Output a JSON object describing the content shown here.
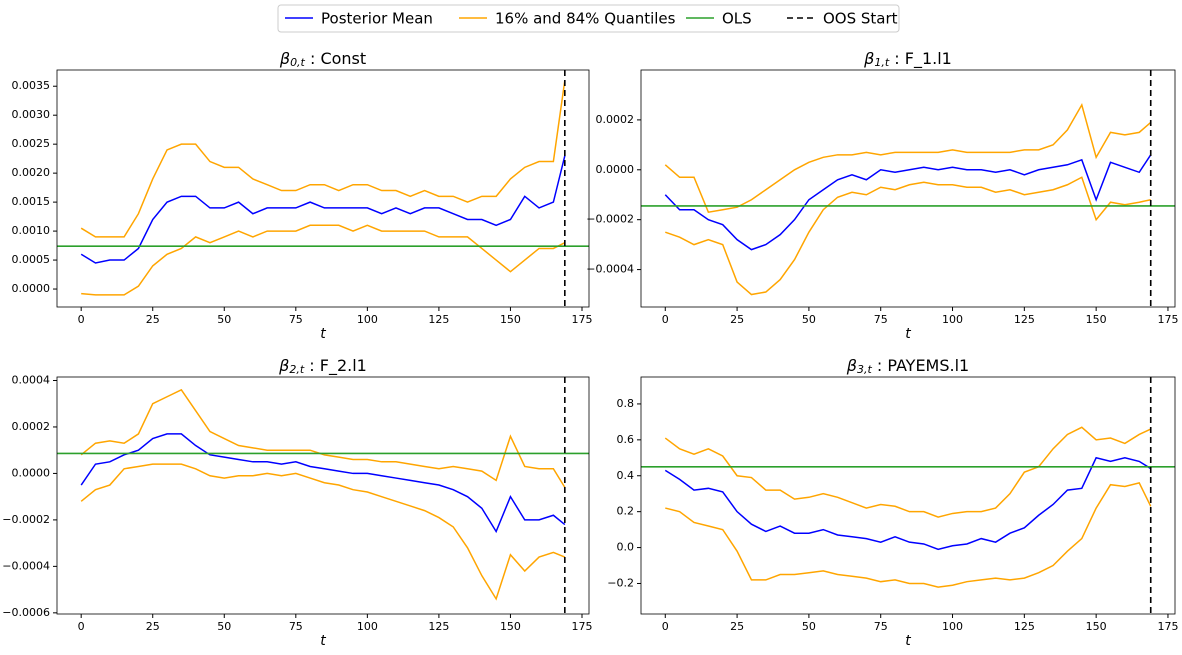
{
  "legend": {
    "location": "upper center",
    "entries": [
      {
        "name": "Posterior Mean",
        "color": "#0000ff",
        "style": "solid"
      },
      {
        "name": "16% and 84% Quantiles",
        "color": "#ffa500",
        "style": "solid"
      },
      {
        "name": "OLS",
        "color": "#2ca02c",
        "style": "solid"
      },
      {
        "name": "OOS Start",
        "color": "#000000",
        "style": "dashed"
      }
    ]
  },
  "chart_data": [
    {
      "type": "line",
      "title_symbol": "β",
      "title_subscript": "0,t",
      "title_text": " : Const",
      "xlabel": "t",
      "x": [
        0,
        5,
        10,
        15,
        20,
        25,
        30,
        35,
        40,
        45,
        50,
        55,
        60,
        65,
        70,
        75,
        80,
        85,
        90,
        95,
        100,
        105,
        110,
        115,
        120,
        125,
        130,
        135,
        140,
        145,
        150,
        155,
        160,
        165,
        169
      ],
      "mean": [
        0.0006,
        0.00045,
        0.0005,
        0.0005,
        0.0007,
        0.0012,
        0.0015,
        0.0016,
        0.0016,
        0.0014,
        0.0014,
        0.0015,
        0.0013,
        0.0014,
        0.0014,
        0.0014,
        0.0015,
        0.0014,
        0.0014,
        0.0014,
        0.0014,
        0.0013,
        0.0014,
        0.0013,
        0.0014,
        0.0014,
        0.0013,
        0.0012,
        0.0012,
        0.0011,
        0.0012,
        0.0016,
        0.0014,
        0.0015,
        0.0023
      ],
      "upper": [
        0.00105,
        0.0009,
        0.0009,
        0.0009,
        0.0013,
        0.0019,
        0.0024,
        0.0025,
        0.0025,
        0.0022,
        0.0021,
        0.0021,
        0.0019,
        0.0018,
        0.0017,
        0.0017,
        0.0018,
        0.0018,
        0.0017,
        0.0018,
        0.0018,
        0.0017,
        0.0017,
        0.0016,
        0.0017,
        0.0016,
        0.0016,
        0.0015,
        0.0016,
        0.0016,
        0.0019,
        0.0021,
        0.0022,
        0.0022,
        0.0036
      ],
      "lower": [
        -8e-05,
        -0.0001,
        -0.0001,
        -0.0001,
        5e-05,
        0.0004,
        0.0006,
        0.0007,
        0.0009,
        0.0008,
        0.0009,
        0.001,
        0.0009,
        0.001,
        0.001,
        0.001,
        0.0011,
        0.0011,
        0.0011,
        0.001,
        0.0011,
        0.001,
        0.001,
        0.001,
        0.001,
        0.0009,
        0.0009,
        0.0009,
        0.0007,
        0.0005,
        0.0003,
        0.0005,
        0.0007,
        0.0007,
        0.0008
      ],
      "ols": 0.00074,
      "oos_start": 169,
      "xlim": [
        -8.45,
        177.45
      ],
      "xticks": [
        0,
        25,
        50,
        75,
        100,
        125,
        150,
        175
      ],
      "ylim": [
        -0.00031,
        0.00378
      ],
      "yticks": [
        {
          "value": 0,
          "label": "0.0000"
        },
        {
          "value": 0.0005,
          "label": "0.0005"
        },
        {
          "value": 0.001,
          "label": "0.0010"
        },
        {
          "value": 0.0015,
          "label": "0.0015"
        },
        {
          "value": 0.002,
          "label": "0.0020"
        },
        {
          "value": 0.0025,
          "label": "0.0025"
        },
        {
          "value": 0.003,
          "label": "0.0030"
        },
        {
          "value": 0.0035,
          "label": "0.0035"
        }
      ]
    },
    {
      "type": "line",
      "title_symbol": "β",
      "title_subscript": "1,t",
      "title_text": " : F_1.l1",
      "xlabel": "t",
      "x": [
        0,
        5,
        10,
        15,
        20,
        25,
        30,
        35,
        40,
        45,
        50,
        55,
        60,
        65,
        70,
        75,
        80,
        85,
        90,
        95,
        100,
        105,
        110,
        115,
        120,
        125,
        130,
        135,
        140,
        145,
        150,
        155,
        160,
        165,
        169
      ],
      "mean": [
        -0.0001,
        -0.00016,
        -0.00016,
        -0.0002,
        -0.00022,
        -0.00028,
        -0.00032,
        -0.0003,
        -0.00026,
        -0.0002,
        -0.00012,
        -8e-05,
        -4e-05,
        -2e-05,
        -4e-05,
        0,
        -1e-05,
        0,
        1e-05,
        0,
        1e-05,
        0,
        0,
        -1e-05,
        0,
        -2e-05,
        0,
        1e-05,
        2e-05,
        4e-05,
        -0.00012,
        3e-05,
        1e-05,
        -1e-05,
        6e-05
      ],
      "upper": [
        2e-05,
        -3e-05,
        -3e-05,
        -0.00017,
        -0.00016,
        -0.00015,
        -0.00012,
        -8e-05,
        -4e-05,
        0,
        3e-05,
        5e-05,
        6e-05,
        6e-05,
        7e-05,
        6e-05,
        7e-05,
        7e-05,
        7e-05,
        7e-05,
        8e-05,
        7e-05,
        7e-05,
        7e-05,
        7e-05,
        8e-05,
        8e-05,
        0.0001,
        0.00016,
        0.00026,
        5e-05,
        0.00015,
        0.00014,
        0.00015,
        0.00019
      ],
      "lower": [
        -0.00025,
        -0.00027,
        -0.0003,
        -0.00028,
        -0.0003,
        -0.00045,
        -0.0005,
        -0.00049,
        -0.00044,
        -0.00036,
        -0.00025,
        -0.00016,
        -0.00011,
        -9e-05,
        -0.0001,
        -7e-05,
        -8e-05,
        -6e-05,
        -5e-05,
        -6e-05,
        -6e-05,
        -7e-05,
        -7e-05,
        -9e-05,
        -8e-05,
        -0.0001,
        -9e-05,
        -8e-05,
        -6e-05,
        -3e-05,
        -0.0002,
        -0.00013,
        -0.00014,
        -0.00013,
        -0.00012
      ],
      "ols": -0.000145,
      "oos_start": 169,
      "xlim": [
        -8.45,
        177.45
      ],
      "xticks": [
        0,
        25,
        50,
        75,
        100,
        125,
        150,
        175
      ],
      "ylim": [
        -0.00055,
        0.0004
      ],
      "yticks": [
        {
          "value": -0.0004,
          "label": "−0.0004"
        },
        {
          "value": -0.0002,
          "label": "−0.0002"
        },
        {
          "value": 0,
          "label": "0.0000"
        },
        {
          "value": 0.0002,
          "label": "0.0002"
        }
      ]
    },
    {
      "type": "line",
      "title_symbol": "β",
      "title_subscript": "2,t",
      "title_text": " : F_2.l1",
      "xlabel": "t",
      "x": [
        0,
        5,
        10,
        15,
        20,
        25,
        30,
        35,
        40,
        45,
        50,
        55,
        60,
        65,
        70,
        75,
        80,
        85,
        90,
        95,
        100,
        105,
        110,
        115,
        120,
        125,
        130,
        135,
        140,
        145,
        150,
        155,
        160,
        165,
        169
      ],
      "mean": [
        -5e-05,
        4e-05,
        5e-05,
        8e-05,
        0.0001,
        0.00015,
        0.00017,
        0.00017,
        0.00012,
        8e-05,
        7e-05,
        6e-05,
        5e-05,
        5e-05,
        4e-05,
        5e-05,
        3e-05,
        2e-05,
        1e-05,
        0,
        0,
        -1e-05,
        -2e-05,
        -3e-05,
        -4e-05,
        -5e-05,
        -7e-05,
        -0.0001,
        -0.00015,
        -0.00025,
        -0.0001,
        -0.0002,
        -0.0002,
        -0.00018,
        -0.00022
      ],
      "upper": [
        8e-05,
        0.00013,
        0.00014,
        0.00013,
        0.00017,
        0.0003,
        0.00033,
        0.00036,
        0.00027,
        0.00018,
        0.00015,
        0.00012,
        0.00011,
        0.0001,
        0.0001,
        0.0001,
        0.0001,
        8e-05,
        7e-05,
        6e-05,
        6e-05,
        5e-05,
        5e-05,
        4e-05,
        3e-05,
        2e-05,
        3e-05,
        2e-05,
        1e-05,
        -3e-05,
        0.00016,
        3e-05,
        2e-05,
        2e-05,
        -6e-05
      ],
      "lower": [
        -0.00012,
        -7e-05,
        -5e-05,
        2e-05,
        3e-05,
        4e-05,
        4e-05,
        4e-05,
        2e-05,
        -1e-05,
        -2e-05,
        -1e-05,
        -1e-05,
        0,
        -1e-05,
        0,
        -2e-05,
        -4e-05,
        -5e-05,
        -7e-05,
        -8e-05,
        -0.0001,
        -0.00012,
        -0.00014,
        -0.00016,
        -0.00019,
        -0.00023,
        -0.00032,
        -0.00044,
        -0.00054,
        -0.00035,
        -0.00042,
        -0.00036,
        -0.00034,
        -0.00036
      ],
      "ols": 8.6e-05,
      "oos_start": 169,
      "xlim": [
        -8.45,
        177.45
      ],
      "xticks": [
        0,
        25,
        50,
        75,
        100,
        125,
        150,
        175
      ],
      "ylim": [
        -0.000605,
        0.000415
      ],
      "yticks": [
        {
          "value": -0.0006,
          "label": "−0.0006"
        },
        {
          "value": -0.0004,
          "label": "−0.0004"
        },
        {
          "value": -0.0002,
          "label": "−0.0002"
        },
        {
          "value": 0,
          "label": "0.0000"
        },
        {
          "value": 0.0002,
          "label": "0.0002"
        },
        {
          "value": 0.0004,
          "label": "0.0004"
        }
      ]
    },
    {
      "type": "line",
      "title_symbol": "β",
      "title_subscript": "3,t",
      "title_text": " : PAYEMS.l1",
      "xlabel": "t",
      "x": [
        0,
        5,
        10,
        15,
        20,
        25,
        30,
        35,
        40,
        45,
        50,
        55,
        60,
        65,
        70,
        75,
        80,
        85,
        90,
        95,
        100,
        105,
        110,
        115,
        120,
        125,
        130,
        135,
        140,
        145,
        150,
        155,
        160,
        165,
        169
      ],
      "mean": [
        0.43,
        0.38,
        0.32,
        0.33,
        0.31,
        0.2,
        0.13,
        0.09,
        0.12,
        0.08,
        0.08,
        0.1,
        0.07,
        0.06,
        0.05,
        0.03,
        0.06,
        0.03,
        0.02,
        -0.01,
        0.01,
        0.02,
        0.05,
        0.03,
        0.08,
        0.11,
        0.18,
        0.24,
        0.32,
        0.33,
        0.5,
        0.48,
        0.5,
        0.48,
        0.44
      ],
      "upper": [
        0.61,
        0.55,
        0.52,
        0.55,
        0.51,
        0.4,
        0.39,
        0.32,
        0.32,
        0.27,
        0.28,
        0.3,
        0.28,
        0.25,
        0.22,
        0.24,
        0.23,
        0.2,
        0.2,
        0.17,
        0.19,
        0.2,
        0.2,
        0.22,
        0.3,
        0.42,
        0.45,
        0.55,
        0.63,
        0.67,
        0.6,
        0.61,
        0.58,
        0.63,
        0.66
      ],
      "lower": [
        0.22,
        0.2,
        0.14,
        0.12,
        0.1,
        -0.02,
        -0.18,
        -0.18,
        -0.15,
        -0.15,
        -0.14,
        -0.13,
        -0.15,
        -0.16,
        -0.17,
        -0.19,
        -0.18,
        -0.2,
        -0.2,
        -0.22,
        -0.21,
        -0.19,
        -0.18,
        -0.17,
        -0.18,
        -0.17,
        -0.14,
        -0.1,
        -0.02,
        0.05,
        0.22,
        0.35,
        0.34,
        0.36,
        0.23
      ],
      "ols": 0.45,
      "oos_start": 169,
      "xlim": [
        -8.45,
        177.45
      ],
      "xticks": [
        0,
        25,
        50,
        75,
        100,
        125,
        150,
        175
      ],
      "ylim": [
        -0.37,
        0.95
      ],
      "yticks": [
        {
          "value": -0.2,
          "label": "−0.2"
        },
        {
          "value": 0,
          "label": "0.0"
        },
        0.2,
        0.4,
        0.6,
        0.8
      ]
    }
  ]
}
